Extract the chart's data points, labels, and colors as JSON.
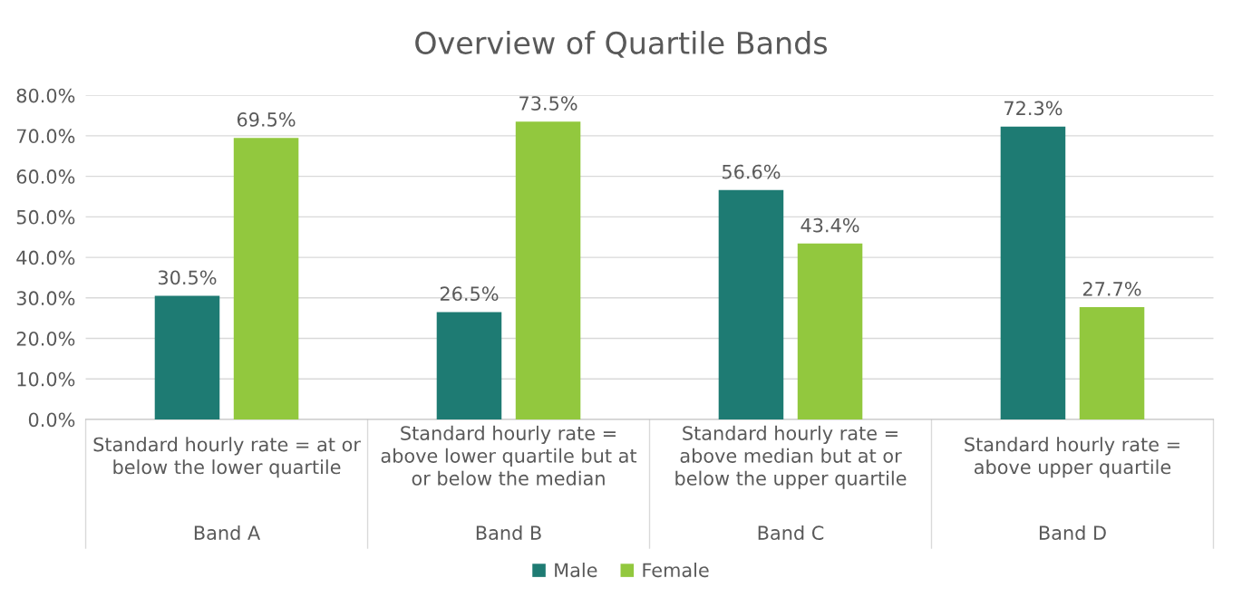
{
  "chart_data": {
    "type": "bar",
    "title": "Overview of Quartile Bands",
    "categories": [
      "Standard hourly rate = at or\nbelow the lower quartile",
      "Standard hourly rate =\nabove lower quartile but at\nor below the median",
      "Standard hourly rate =\nabove median but at or\nbelow the upper quartile",
      "Standard hourly rate =\nabove upper quartile"
    ],
    "annotations": [
      "Band A",
      "Band B",
      "Band C",
      "Band D"
    ],
    "series": [
      {
        "name": "Male",
        "color": "#1e7b73",
        "values": [
          30.5,
          26.5,
          56.6,
          72.3
        ],
        "value_labels": [
          "30.5%",
          "26.5%",
          "56.6%",
          "72.3%"
        ]
      },
      {
        "name": "Female",
        "color": "#92c83e",
        "values": [
          69.5,
          73.5,
          43.4,
          27.7
        ],
        "value_labels": [
          "69.5%",
          "73.5%",
          "43.4%",
          "27.7%"
        ]
      }
    ],
    "ylim": [
      0,
      80
    ],
    "yticks": [
      {
        "value": 0,
        "label": "0.0%"
      },
      {
        "value": 10,
        "label": "10.0%"
      },
      {
        "value": 20,
        "label": "20.0%"
      },
      {
        "value": 30,
        "label": "30.0%"
      },
      {
        "value": 40,
        "label": "40.0%"
      },
      {
        "value": 50,
        "label": "50.0%"
      },
      {
        "value": 60,
        "label": "60.0%"
      },
      {
        "value": 70,
        "label": "70.0%"
      },
      {
        "value": 80,
        "label": "80.0%"
      }
    ],
    "grid": "y",
    "legend": "bottom"
  }
}
